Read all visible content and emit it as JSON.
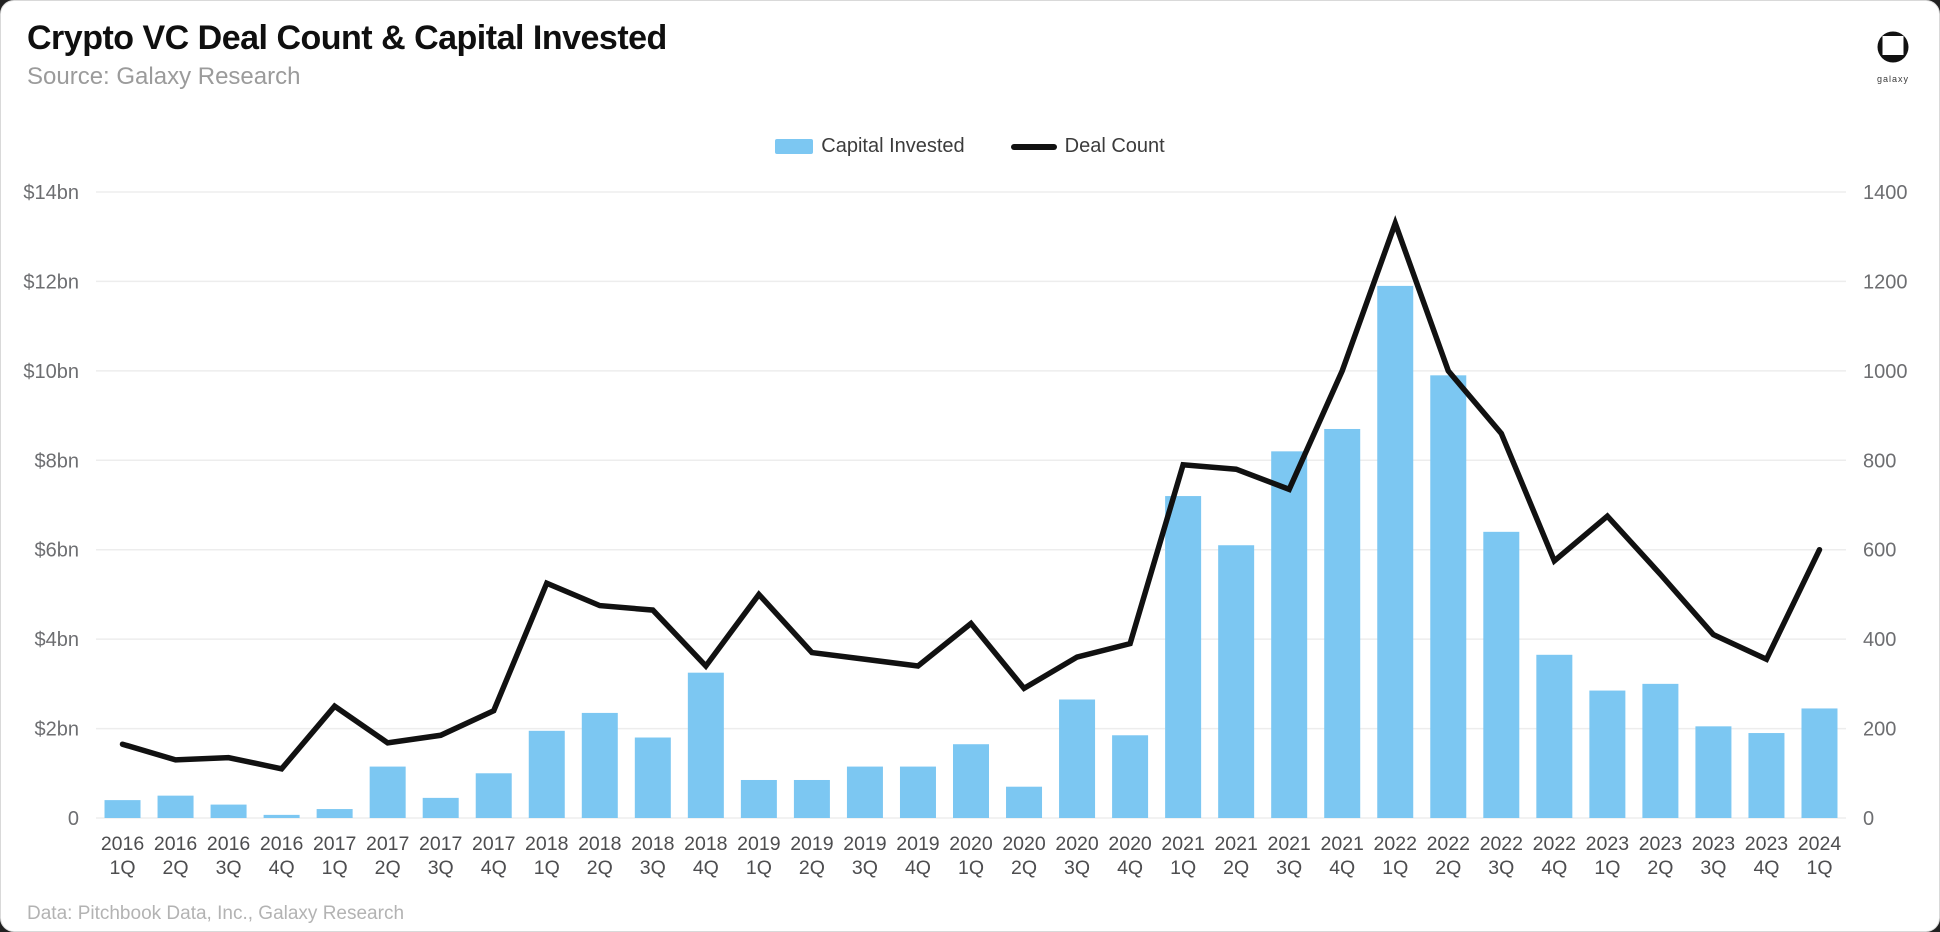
{
  "header": {
    "title": "Crypto VC Deal Count & Capital Invested",
    "subtitle": "Source: Galaxy Research",
    "logo_text": "galaxy"
  },
  "legend": [
    {
      "label": "Capital Invested",
      "type": "bar"
    },
    {
      "label": "Deal Count",
      "type": "line"
    }
  ],
  "footer": {
    "text": "Data: Pitchbook Data, Inc., Galaxy Research"
  },
  "colors": {
    "bar": "#7cc7f2",
    "line": "#111111",
    "grid": "#ededed",
    "axis_text": "#6d6e71",
    "xtick_text": "#4d4d4f",
    "title": "#0f0f0f",
    "subtitle": "#9b9b9b",
    "footer": "#b3b3b3"
  },
  "chart_data": {
    "type": "bar",
    "subtype": "bar+line dual axis",
    "title": "Crypto VC Deal Count & Capital Invested",
    "grid": true,
    "legend_position": "top-center",
    "categories": [
      "2016 1Q",
      "2016 2Q",
      "2016 3Q",
      "2016 4Q",
      "2017 1Q",
      "2017 2Q",
      "2017 3Q",
      "2017 4Q",
      "2018 1Q",
      "2018 2Q",
      "2018 3Q",
      "2018 4Q",
      "2019 1Q",
      "2019 2Q",
      "2019 3Q",
      "2019 4Q",
      "2020 1Q",
      "2020 2Q",
      "2020 3Q",
      "2020 4Q",
      "2021 1Q",
      "2021 2Q",
      "2021 3Q",
      "2021 4Q",
      "2022 1Q",
      "2022 2Q",
      "2022 3Q",
      "2022 4Q",
      "2023 1Q",
      "2023 2Q",
      "2023 3Q",
      "2023 4Q",
      "2024 1Q"
    ],
    "series": [
      {
        "name": "Capital Invested",
        "type": "bar",
        "axis": "left",
        "unit": "$bn",
        "values": [
          0.4,
          0.5,
          0.3,
          0.07,
          0.2,
          1.15,
          0.45,
          1.0,
          1.95,
          2.35,
          1.8,
          3.25,
          0.85,
          0.85,
          1.15,
          1.15,
          1.65,
          0.7,
          2.65,
          1.85,
          7.2,
          6.1,
          8.2,
          8.7,
          11.9,
          9.9,
          6.4,
          3.65,
          2.85,
          3.0,
          2.05,
          1.9,
          2.45
        ]
      },
      {
        "name": "Deal Count",
        "type": "line",
        "axis": "right",
        "unit": "deals",
        "values": [
          165,
          130,
          135,
          110,
          250,
          168,
          185,
          240,
          525,
          475,
          465,
          340,
          500,
          370,
          355,
          340,
          435,
          290,
          360,
          390,
          790,
          780,
          735,
          1000,
          1330,
          1000,
          860,
          575,
          675,
          545,
          410,
          355,
          600
        ]
      }
    ],
    "left_axis": {
      "min": 0,
      "max": 14,
      "ticks": [
        "0",
        "$2bn",
        "$4bn",
        "$6bn",
        "$8bn",
        "$10bn",
        "$12bn",
        "$14bn"
      ]
    },
    "right_axis": {
      "min": 0,
      "max": 1400,
      "ticks": [
        "0",
        "200",
        "400",
        "600",
        "800",
        "1000",
        "1200",
        "1400"
      ]
    }
  }
}
